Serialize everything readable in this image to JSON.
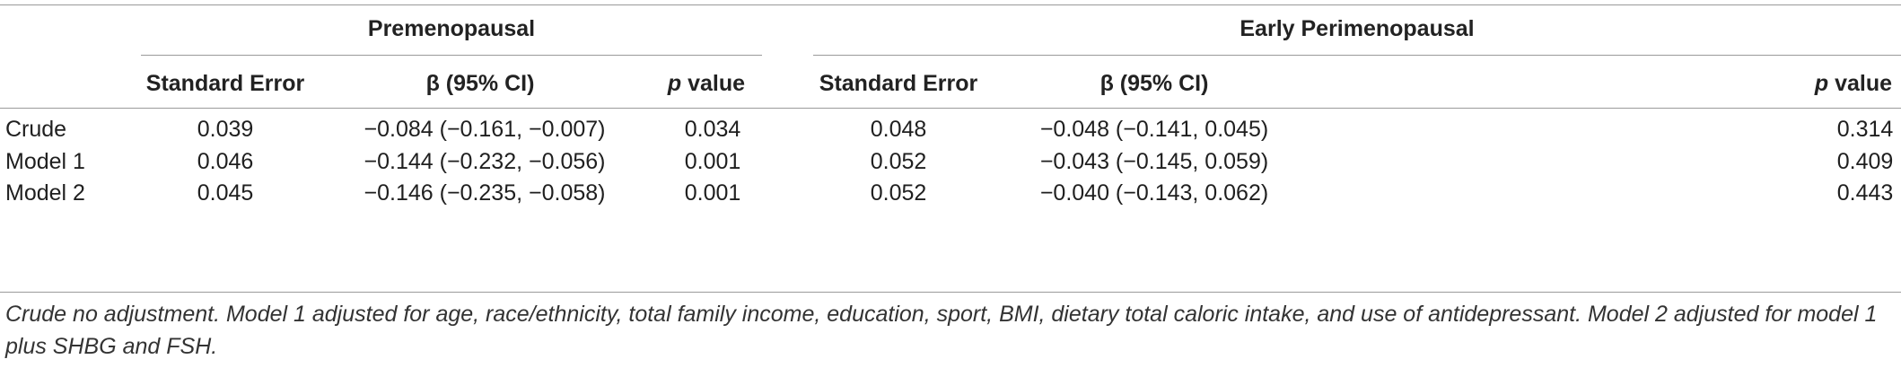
{
  "table": {
    "groups": [
      {
        "label": "Premenopausal"
      },
      {
        "label": "Early Perimenopausal"
      }
    ],
    "columns": {
      "standard_error": "Standard Error",
      "beta": "β (95% CI)",
      "p_italic": "p",
      "p_rest": " value"
    },
    "rows": [
      {
        "label": "Crude",
        "pre": {
          "se": "0.039",
          "beta": "−0.084 (−0.161, −0.007)",
          "p": "0.034"
        },
        "peri": {
          "se": "0.048",
          "beta": "−0.048 (−0.141, 0.045)",
          "p": "0.314"
        }
      },
      {
        "label": "Model 1",
        "pre": {
          "se": "0.046",
          "beta": "−0.144 (−0.232, −0.056)",
          "p": "0.001"
        },
        "peri": {
          "se": "0.052",
          "beta": "−0.043 (−0.145, 0.059)",
          "p": "0.409"
        }
      },
      {
        "label": "Model 2",
        "pre": {
          "se": "0.045",
          "beta": "−0.146 (−0.235, −0.058)",
          "p": "0.001"
        },
        "peri": {
          "se": "0.052",
          "beta": "−0.040 (−0.143, 0.062)",
          "p": "0.443"
        }
      }
    ],
    "footnote": "Crude no adjustment. Model 1 adjusted for age, race/ethnicity, total family income, education, sport, BMI, dietary total caloric intake, and use of antidepressant. Model 2 adjusted for model 1 plus SHBG and FSH."
  }
}
